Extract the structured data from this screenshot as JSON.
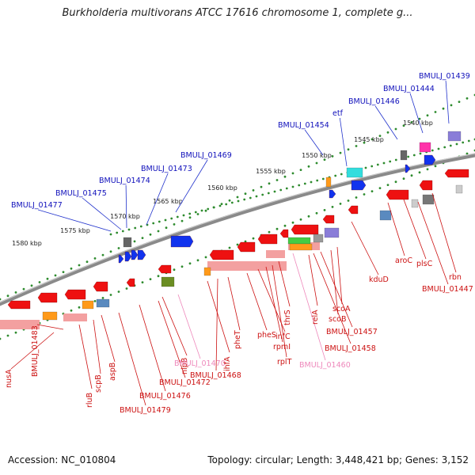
{
  "title": "Burkholderia multivorans ATCC 17616 chromosome 1, complete g...",
  "footer": {
    "accession": "Accession: NC_010804",
    "topology": "Topology: circular; Length: 3,448,421 bp; Genes: 3,152"
  },
  "colors": {
    "backbone": "#8a8a8a",
    "dots": "#2e8b2e",
    "gene_forward_label": "#1010bb",
    "gene_reverse_label": "#cc1111",
    "pseudo_label": "#ee88bb",
    "red": "#ee1111",
    "blue": "#1133ee"
  },
  "kbp_labels": [
    "1580 kbp",
    "1575 kbp",
    "1570 kbp",
    "1565 kbp",
    "1560 kbp",
    "1555 kbp",
    "1550 kbp",
    "1545 kbp",
    "1540 kbp"
  ],
  "top_labels": [
    "BMULJ_01477",
    "BMULJ_01475",
    "BMULJ_01474",
    "BMULJ_01473",
    "BMULJ_01469",
    "BMULJ_01454",
    "etf",
    "BMULJ_01446",
    "BMULJ_01444",
    "BMULJ_01439"
  ],
  "bottom_labels": [
    "nusA",
    "BMULJ_01483",
    "rluB",
    "scpB",
    "aspB",
    "BMULJ_01479",
    "BMULJ_01476",
    "BMULJ_01472",
    "nlpB",
    "BMULJ_01470",
    "ihfA",
    "BMULJ_01468",
    "pheT",
    "pheS",
    "infC",
    "rpmI",
    "rplT",
    "thrS",
    "BMULJ_01460",
    "relA",
    "BMULJ_01458",
    "BMULJ_01457",
    "scoB",
    "scoA",
    "kduD",
    "aroC",
    "plsC",
    "BMULJ_01447",
    "rbn"
  ]
}
